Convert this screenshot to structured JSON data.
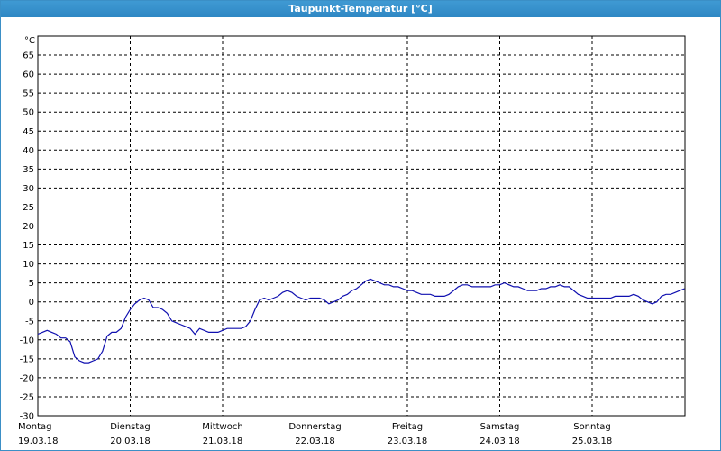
{
  "window": {
    "title": "Taupunkt-Temperatur [°C]"
  },
  "colors": {
    "title_bar": "#2f88c4",
    "series_line": "#1010b0",
    "grid": "#000000"
  },
  "chart_data": {
    "type": "line",
    "title": "Taupunkt-Temperatur [°C]",
    "ylabel": "°C",
    "xlabel": "",
    "ylim": [
      -30,
      70
    ],
    "yticks": [
      65,
      60,
      55,
      50,
      45,
      40,
      35,
      30,
      25,
      20,
      15,
      10,
      5,
      0,
      -5,
      -10,
      -15,
      -20,
      -25,
      -30
    ],
    "xlim": [
      0,
      7
    ],
    "x_ticks": [
      {
        "day": "Montag",
        "date": "19.03.18",
        "x": 0
      },
      {
        "day": "Dienstag",
        "date": "20.03.18",
        "x": 1
      },
      {
        "day": "Mittwoch",
        "date": "21.03.18",
        "x": 2
      },
      {
        "day": "Donnerstag",
        "date": "22.03.18",
        "x": 3
      },
      {
        "day": "Freitag",
        "date": "23.03.18",
        "x": 4
      },
      {
        "day": "Samstag",
        "date": "24.03.18",
        "x": 5
      },
      {
        "day": "Sonntag",
        "date": "25.03.18",
        "x": 6
      }
    ],
    "grid": true,
    "series": [
      {
        "color": "#1010b0",
        "points": [
          [
            0.0,
            -8.5
          ],
          [
            0.05,
            -8.0
          ],
          [
            0.1,
            -7.5
          ],
          [
            0.15,
            -8.0
          ],
          [
            0.2,
            -8.5
          ],
          [
            0.25,
            -9.5
          ],
          [
            0.3,
            -9.5
          ],
          [
            0.35,
            -10.5
          ],
          [
            0.4,
            -14.5
          ],
          [
            0.45,
            -15.5
          ],
          [
            0.5,
            -16.0
          ],
          [
            0.55,
            -16.0
          ],
          [
            0.6,
            -15.5
          ],
          [
            0.65,
            -15.0
          ],
          [
            0.7,
            -13.0
          ],
          [
            0.75,
            -9.0
          ],
          [
            0.8,
            -8.0
          ],
          [
            0.85,
            -8.0
          ],
          [
            0.9,
            -7.0
          ],
          [
            0.95,
            -4.0
          ],
          [
            1.0,
            -2.0
          ],
          [
            1.05,
            -0.5
          ],
          [
            1.1,
            0.5
          ],
          [
            1.15,
            1.0
          ],
          [
            1.2,
            0.5
          ],
          [
            1.25,
            -1.5
          ],
          [
            1.3,
            -1.5
          ],
          [
            1.35,
            -2.0
          ],
          [
            1.4,
            -3.0
          ],
          [
            1.45,
            -5.0
          ],
          [
            1.5,
            -5.5
          ],
          [
            1.55,
            -6.0
          ],
          [
            1.6,
            -6.5
          ],
          [
            1.65,
            -7.0
          ],
          [
            1.7,
            -8.5
          ],
          [
            1.75,
            -7.0
          ],
          [
            1.8,
            -7.5
          ],
          [
            1.85,
            -8.0
          ],
          [
            1.9,
            -8.0
          ],
          [
            1.95,
            -8.0
          ],
          [
            2.0,
            -7.5
          ],
          [
            2.05,
            -7.0
          ],
          [
            2.1,
            -7.0
          ],
          [
            2.15,
            -7.0
          ],
          [
            2.2,
            -7.0
          ],
          [
            2.25,
            -6.5
          ],
          [
            2.3,
            -5.0
          ],
          [
            2.35,
            -2.0
          ],
          [
            2.4,
            0.5
          ],
          [
            2.45,
            1.0
          ],
          [
            2.5,
            0.5
          ],
          [
            2.55,
            1.0
          ],
          [
            2.6,
            1.5
          ],
          [
            2.65,
            2.5
          ],
          [
            2.7,
            3.0
          ],
          [
            2.75,
            2.5
          ],
          [
            2.8,
            1.5
          ],
          [
            2.85,
            1.0
          ],
          [
            2.9,
            0.5
          ],
          [
            2.95,
            1.0
          ],
          [
            3.0,
            1.0
          ],
          [
            3.05,
            1.0
          ],
          [
            3.1,
            0.5
          ],
          [
            3.15,
            -0.5
          ],
          [
            3.2,
            0.0
          ],
          [
            3.25,
            0.5
          ],
          [
            3.3,
            1.5
          ],
          [
            3.35,
            2.0
          ],
          [
            3.4,
            3.0
          ],
          [
            3.45,
            3.5
          ],
          [
            3.5,
            4.5
          ],
          [
            3.55,
            5.5
          ],
          [
            3.6,
            6.0
          ],
          [
            3.65,
            5.5
          ],
          [
            3.7,
            5.0
          ],
          [
            3.75,
            4.5
          ],
          [
            3.8,
            4.5
          ],
          [
            3.85,
            4.0
          ],
          [
            3.9,
            4.0
          ],
          [
            3.95,
            3.5
          ],
          [
            4.0,
            3.0
          ],
          [
            4.05,
            3.0
          ],
          [
            4.1,
            2.5
          ],
          [
            4.15,
            2.0
          ],
          [
            4.2,
            2.0
          ],
          [
            4.25,
            2.0
          ],
          [
            4.3,
            1.5
          ],
          [
            4.35,
            1.5
          ],
          [
            4.4,
            1.5
          ],
          [
            4.45,
            2.0
          ],
          [
            4.5,
            3.0
          ],
          [
            4.55,
            4.0
          ],
          [
            4.6,
            4.5
          ],
          [
            4.65,
            4.5
          ],
          [
            4.7,
            4.0
          ],
          [
            4.75,
            4.0
          ],
          [
            4.8,
            4.0
          ],
          [
            4.85,
            4.0
          ],
          [
            4.9,
            4.0
          ],
          [
            4.95,
            4.5
          ],
          [
            5.0,
            4.5
          ],
          [
            5.05,
            5.0
          ],
          [
            5.1,
            4.5
          ],
          [
            5.15,
            4.0
          ],
          [
            5.2,
            4.0
          ],
          [
            5.25,
            3.5
          ],
          [
            5.3,
            3.0
          ],
          [
            5.35,
            3.0
          ],
          [
            5.4,
            3.0
          ],
          [
            5.45,
            3.5
          ],
          [
            5.5,
            3.5
          ],
          [
            5.55,
            4.0
          ],
          [
            5.6,
            4.0
          ],
          [
            5.65,
            4.5
          ],
          [
            5.7,
            4.0
          ],
          [
            5.75,
            4.0
          ],
          [
            5.8,
            3.0
          ],
          [
            5.85,
            2.0
          ],
          [
            5.9,
            1.5
          ],
          [
            5.95,
            1.0
          ],
          [
            6.0,
            1.0
          ],
          [
            6.05,
            1.0
          ],
          [
            6.1,
            1.0
          ],
          [
            6.15,
            1.0
          ],
          [
            6.2,
            1.0
          ],
          [
            6.25,
            1.5
          ],
          [
            6.3,
            1.5
          ],
          [
            6.35,
            1.5
          ],
          [
            6.4,
            1.5
          ],
          [
            6.45,
            2.0
          ],
          [
            6.5,
            1.5
          ],
          [
            6.55,
            0.5
          ],
          [
            6.6,
            0.0
          ],
          [
            6.65,
            -0.5
          ],
          [
            6.7,
            0.0
          ],
          [
            6.75,
            1.5
          ],
          [
            6.8,
            2.0
          ],
          [
            6.85,
            2.0
          ],
          [
            6.9,
            2.5
          ],
          [
            6.95,
            3.0
          ],
          [
            7.0,
            3.5
          ]
        ]
      }
    ]
  }
}
